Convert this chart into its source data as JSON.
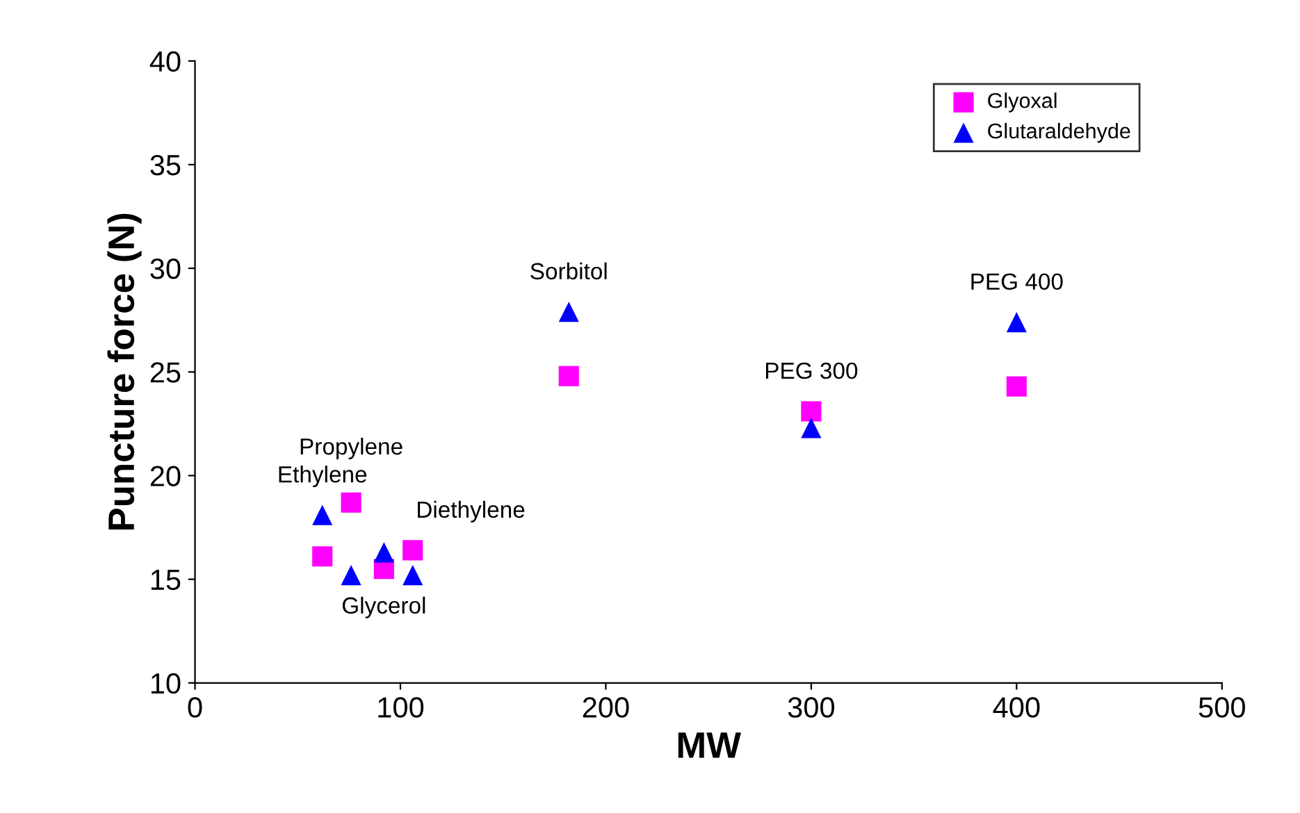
{
  "chart_data": {
    "type": "scatter",
    "xlabel": "MW",
    "ylabel": "Puncture force (N)",
    "xlim": [
      0,
      500
    ],
    "xticks": [
      0,
      100,
      200,
      300,
      400,
      500
    ],
    "ylim": [
      10,
      40
    ],
    "yticks": [
      10,
      15,
      20,
      25,
      30,
      35,
      40
    ],
    "grid": false,
    "legend": "top right",
    "series": [
      {
        "name": "Glyoxal",
        "color": "#ff00ff",
        "marker": "square",
        "x": [
          62,
          76,
          92,
          106,
          182,
          300,
          400
        ],
        "values": [
          16.1,
          18.7,
          15.5,
          16.4,
          24.8,
          23.1,
          24.3
        ]
      },
      {
        "name": "Glutaraldehyde",
        "color": "#0000ff",
        "marker": "triangle",
        "x": [
          62,
          76,
          92,
          106,
          182,
          300,
          400
        ],
        "values": [
          18.1,
          15.2,
          16.3,
          15.2,
          27.9,
          22.3,
          27.4
        ]
      }
    ],
    "annotations": [
      {
        "text": "Ethylene",
        "x": 62,
        "y": 18.1
      },
      {
        "text": "Propylene",
        "x": 76,
        "y": 18.7
      },
      {
        "text": "Diethylene",
        "x": 106,
        "y": 16.4
      },
      {
        "text": "Glycerol",
        "x": 92,
        "y": 15.5
      },
      {
        "text": "Sorbitol",
        "x": 182,
        "y": 27.9
      },
      {
        "text": "PEG 300",
        "x": 300,
        "y": 23.1
      },
      {
        "text": "PEG 400",
        "x": 400,
        "y": 27.4
      }
    ]
  }
}
